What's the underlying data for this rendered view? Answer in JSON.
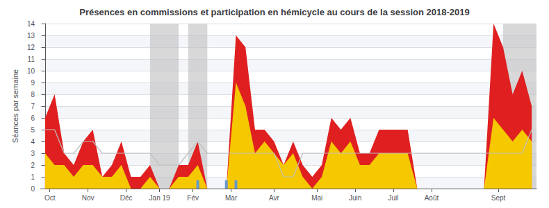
{
  "chart_data": {
    "type": "area",
    "title": "Présences en commissions et participation en hémicycle au cours de la session 2018-2019",
    "ylabel": "Séances par semaine",
    "x": [
      0,
      1,
      2,
      3,
      4,
      5,
      6,
      7,
      8,
      9,
      10,
      11,
      12,
      13,
      14,
      15,
      16,
      17,
      18,
      19,
      20,
      21,
      22,
      23,
      24,
      25,
      26,
      27,
      28,
      29,
      30,
      31,
      32,
      33,
      34,
      35,
      36,
      37,
      38,
      39,
      40,
      41,
      42,
      43,
      44,
      45,
      46,
      47,
      48,
      49,
      50,
      51
    ],
    "xlim": [
      -0.5,
      51.5
    ],
    "xticks": [
      {
        "value": 0.5,
        "label": "Oct"
      },
      {
        "value": 4.5,
        "label": "Nov"
      },
      {
        "value": 8.5,
        "label": "Déc"
      },
      {
        "value": 12.0,
        "label": "Jan 19"
      },
      {
        "value": 15.5,
        "label": "Fév"
      },
      {
        "value": 19.5,
        "label": "Mar"
      },
      {
        "value": 24.0,
        "label": "Avr"
      },
      {
        "value": 28.5,
        "label": "Mai"
      },
      {
        "value": 32.5,
        "label": "Juin"
      },
      {
        "value": 36.5,
        "label": "Juil"
      },
      {
        "value": 40.5,
        "label": "Août"
      },
      {
        "value": 47.5,
        "label": "Sept"
      }
    ],
    "ylim": [
      0,
      14
    ],
    "yticks": [
      0,
      1,
      2,
      3,
      4,
      5,
      6,
      7,
      8,
      9,
      10,
      11,
      12,
      13,
      14
    ],
    "grid": true,
    "series": [
      {
        "type": "area",
        "color": "#e02020",
        "values": [
          6,
          8,
          3,
          2,
          4,
          5,
          1,
          2,
          4,
          1,
          1,
          2,
          0,
          0,
          2,
          2,
          4,
          0,
          0,
          0,
          13,
          12,
          5,
          5,
          4,
          2,
          4,
          2,
          1,
          2,
          6,
          5,
          6,
          3,
          3,
          5,
          5,
          5,
          5,
          0,
          0,
          0,
          0,
          0,
          0,
          0,
          0,
          14,
          12,
          8,
          10,
          7
        ]
      },
      {
        "type": "area",
        "color": "#f5c800",
        "values": [
          3,
          2,
          2,
          1,
          2,
          2,
          1,
          1,
          2,
          0,
          0,
          1,
          0,
          0,
          1,
          1,
          2,
          0,
          0,
          0,
          9,
          7,
          3,
          4,
          3,
          2,
          3,
          1,
          0,
          1,
          4,
          3,
          4,
          2,
          2,
          3,
          3,
          3,
          3,
          0,
          0,
          0,
          0,
          0,
          0,
          0,
          0,
          6,
          5,
          4,
          5,
          4
        ]
      },
      {
        "type": "line",
        "color": "#c0c0c0",
        "values": [
          5,
          5,
          3,
          3,
          4,
          4,
          3,
          3,
          3,
          3,
          3,
          3,
          2,
          2,
          2,
          3,
          4,
          3,
          3,
          3,
          3,
          3,
          3,
          3,
          3,
          1,
          1,
          3,
          3,
          3,
          3,
          3,
          3,
          3,
          3,
          3,
          3,
          3,
          3,
          3,
          3,
          3,
          3,
          3,
          3,
          3,
          3,
          3,
          3,
          3,
          3,
          5
        ]
      },
      {
        "type": "bar",
        "color": "#6699cc",
        "x": [
          16,
          19,
          20
        ],
        "values": [
          0.7,
          0.7,
          0.7
        ]
      }
    ],
    "shaded": {
      "color": "#bebebe",
      "ranges": [
        [
          11,
          14
        ],
        [
          15,
          17
        ],
        [
          48,
          52
        ]
      ]
    }
  }
}
